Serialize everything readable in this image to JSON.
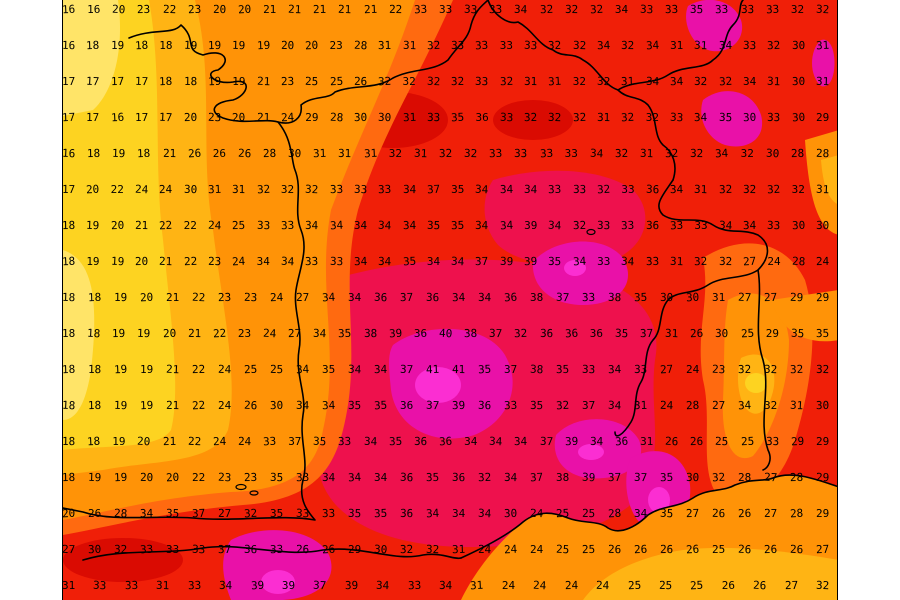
{
  "colors": {
    "margin": "#ffffff",
    "line": "#000000",
    "text": "#000000",
    "red": "#f01f08",
    "dark_red": "#da0b02",
    "crimson": "#ee114d",
    "magenta": "#e911a8",
    "bright_pink": "#fb2ed2",
    "deep_orange": "#ff6a10",
    "orange": "#ff9307",
    "amber": "#ffb414",
    "yellow": "#fdd321",
    "pale_yellow": "#ffe468"
  },
  "map": {
    "temperature_rows": [
      [
        16,
        16,
        20,
        23,
        22,
        23,
        20,
        20,
        21,
        21,
        21,
        21,
        21,
        22,
        33,
        33,
        33,
        33,
        34,
        32,
        32,
        32,
        34,
        33,
        33,
        35,
        33,
        33,
        33,
        32,
        32
      ],
      [
        16,
        18,
        19,
        18,
        18,
        19,
        19,
        19,
        19,
        20,
        20,
        23,
        28,
        31,
        31,
        32,
        33,
        33,
        33,
        33,
        32,
        32,
        34,
        32,
        34,
        31,
        31,
        34,
        33,
        32,
        30,
        31
      ],
      [
        17,
        17,
        17,
        17,
        18,
        18,
        19,
        19,
        21,
        23,
        25,
        25,
        26,
        32,
        32,
        32,
        32,
        33,
        32,
        31,
        31,
        32,
        32,
        31,
        34,
        34,
        32,
        32,
        34,
        31,
        30,
        31
      ],
      [
        17,
        17,
        16,
        17,
        17,
        20,
        23,
        20,
        21,
        24,
        29,
        28,
        30,
        30,
        31,
        33,
        35,
        36,
        33,
        32,
        32,
        32,
        31,
        32,
        32,
        33,
        34,
        35,
        30,
        33,
        30,
        29
      ],
      [
        16,
        18,
        19,
        18,
        21,
        26,
        26,
        26,
        28,
        30,
        31,
        31,
        31,
        32,
        31,
        32,
        32,
        33,
        33,
        33,
        33,
        34,
        32,
        31,
        32,
        32,
        34,
        32,
        30,
        28,
        28
      ],
      [
        17,
        20,
        22,
        24,
        24,
        30,
        31,
        31,
        32,
        32,
        32,
        33,
        33,
        33,
        34,
        37,
        35,
        34,
        34,
        34,
        33,
        33,
        32,
        33,
        36,
        34,
        31,
        32,
        32,
        32,
        32,
        31
      ],
      [
        18,
        19,
        20,
        21,
        22,
        22,
        24,
        25,
        33,
        33,
        34,
        34,
        34,
        34,
        34,
        35,
        35,
        34,
        34,
        39,
        34,
        32,
        33,
        33,
        36,
        33,
        33,
        34,
        34,
        33,
        30,
        30
      ],
      [
        18,
        19,
        19,
        20,
        21,
        22,
        23,
        24,
        34,
        34,
        33,
        33,
        34,
        34,
        35,
        34,
        34,
        37,
        39,
        39,
        35,
        34,
        33,
        34,
        33,
        31,
        32,
        32,
        27,
        24,
        28,
        24
      ],
      [
        18,
        18,
        19,
        20,
        21,
        22,
        23,
        23,
        24,
        27,
        34,
        34,
        36,
        37,
        36,
        34,
        34,
        36,
        38,
        37,
        33,
        38,
        35,
        30,
        30,
        31,
        27,
        27,
        29,
        29
      ],
      [
        18,
        18,
        19,
        19,
        20,
        21,
        22,
        23,
        24,
        27,
        34,
        35,
        38,
        39,
        36,
        40,
        38,
        37,
        32,
        36,
        36,
        36,
        35,
        37,
        31,
        26,
        30,
        25,
        29,
        35,
        35
      ],
      [
        18,
        18,
        19,
        19,
        21,
        22,
        24,
        25,
        25,
        34,
        35,
        34,
        34,
        37,
        41,
        41,
        35,
        37,
        38,
        35,
        33,
        34,
        33,
        27,
        24,
        23,
        32,
        32,
        32,
        32
      ],
      [
        18,
        18,
        19,
        19,
        21,
        22,
        24,
        26,
        30,
        34,
        34,
        35,
        35,
        36,
        37,
        39,
        36,
        33,
        35,
        32,
        37,
        34,
        31,
        24,
        28,
        27,
        34,
        32,
        31,
        30
      ],
      [
        18,
        18,
        19,
        20,
        21,
        22,
        24,
        24,
        33,
        37,
        35,
        33,
        34,
        35,
        36,
        36,
        34,
        34,
        34,
        37,
        39,
        34,
        36,
        31,
        26,
        26,
        25,
        25,
        33,
        29,
        29
      ],
      [
        18,
        19,
        19,
        20,
        20,
        22,
        23,
        23,
        35,
        33,
        34,
        34,
        34,
        36,
        35,
        36,
        32,
        34,
        37,
        38,
        39,
        37,
        37,
        35,
        30,
        32,
        28,
        27,
        28,
        29
      ],
      [
        20,
        26,
        28,
        34,
        35,
        37,
        27,
        32,
        35,
        33,
        33,
        35,
        35,
        36,
        34,
        34,
        34,
        30,
        24,
        25,
        25,
        28,
        34,
        35,
        27,
        26,
        26,
        27,
        28,
        29
      ],
      [
        27,
        30,
        32,
        33,
        33,
        33,
        37,
        36,
        33,
        26,
        26,
        29,
        30,
        32,
        32,
        31,
        24,
        24,
        24,
        25,
        25,
        26,
        26,
        26,
        26,
        25,
        26,
        26,
        26,
        27
      ],
      [
        31,
        33,
        33,
        31,
        33,
        34,
        39,
        39,
        37,
        39,
        34,
        33,
        34,
        31,
        24,
        24,
        24,
        24,
        25,
        25,
        25,
        26,
        26,
        27,
        32
      ]
    ]
  }
}
